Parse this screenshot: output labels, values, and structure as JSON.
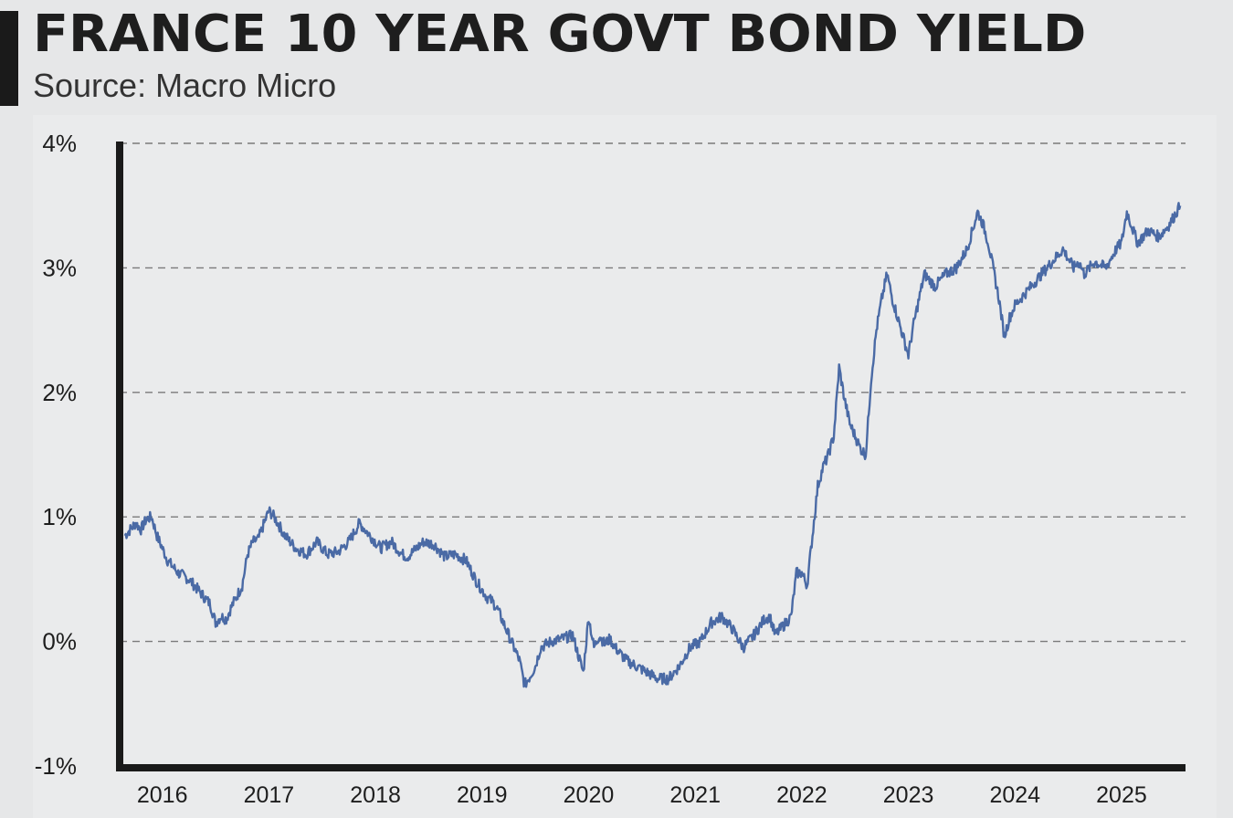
{
  "header": {
    "title": "FRANCE 10 YEAR GOVT BOND YIELD",
    "subtitle": "Source: Macro Micro"
  },
  "colors": {
    "line": "#4a6aa5",
    "axis": "#1a1a1a",
    "grid": "#7a7a7a"
  },
  "chart_data": {
    "type": "line",
    "title": "FRANCE 10 YEAR GOVT BOND YIELD",
    "subtitle": "Source: Macro Micro",
    "xlabel": "",
    "ylabel": "",
    "ylim": [
      -1,
      4
    ],
    "xlim": [
      2015.75,
      2025.75
    ],
    "grid": "horizontal dashed",
    "y_ticks": [
      {
        "value": 4,
        "label": "4%"
      },
      {
        "value": 3,
        "label": "3%"
      },
      {
        "value": 2,
        "label": "2%"
      },
      {
        "value": 1,
        "label": "1%"
      },
      {
        "value": 0,
        "label": "0%"
      },
      {
        "value": -1,
        "label": "-1%"
      }
    ],
    "x_ticks": [
      {
        "value": 2016.15,
        "label": "2016"
      },
      {
        "value": 2017.15,
        "label": "2017"
      },
      {
        "value": 2018.15,
        "label": "2018"
      },
      {
        "value": 2019.15,
        "label": "2019"
      },
      {
        "value": 2020.15,
        "label": "2020"
      },
      {
        "value": 2021.15,
        "label": "2021"
      },
      {
        "value": 2022.15,
        "label": "2022"
      },
      {
        "value": 2023.15,
        "label": "2023"
      },
      {
        "value": 2024.15,
        "label": "2024"
      },
      {
        "value": 2025.15,
        "label": "2025"
      }
    ],
    "series": [
      {
        "name": "France 10Y yield (%)",
        "x": [
          2015.8,
          2015.9,
          2015.95,
          2016.0,
          2016.05,
          2016.1,
          2016.2,
          2016.3,
          2016.4,
          2016.5,
          2016.6,
          2016.65,
          2016.7,
          2016.75,
          2016.8,
          2016.9,
          2016.95,
          2017.0,
          2017.05,
          2017.15,
          2017.2,
          2017.3,
          2017.4,
          2017.5,
          2017.6,
          2017.7,
          2017.8,
          2017.9,
          2018.0,
          2018.1,
          2018.2,
          2018.3,
          2018.4,
          2018.45,
          2018.5,
          2018.6,
          2018.7,
          2018.8,
          2018.9,
          2019.0,
          2019.1,
          2019.2,
          2019.25,
          2019.3,
          2019.4,
          2019.5,
          2019.55,
          2019.6,
          2019.65,
          2019.7,
          2019.8,
          2019.9,
          2020.0,
          2020.05,
          2020.1,
          2020.15,
          2020.2,
          2020.25,
          2020.3,
          2020.35,
          2020.4,
          2020.5,
          2020.6,
          2020.7,
          2020.8,
          2020.9,
          2021.0,
          2021.1,
          2021.2,
          2021.3,
          2021.4,
          2021.5,
          2021.6,
          2021.7,
          2021.8,
          2021.85,
          2021.9,
          2022.0,
          2022.05,
          2022.1,
          2022.15,
          2022.2,
          2022.25,
          2022.3,
          2022.35,
          2022.4,
          2022.45,
          2022.5,
          2022.55,
          2022.6,
          2022.65,
          2022.7,
          2022.75,
          2022.8,
          2022.85,
          2022.9,
          2022.95,
          2023.0,
          2023.05,
          2023.1,
          2023.15,
          2023.2,
          2023.25,
          2023.3,
          2023.4,
          2023.5,
          2023.6,
          2023.7,
          2023.75,
          2023.8,
          2023.85,
          2023.9,
          2024.0,
          2024.05,
          2024.1,
          2024.15,
          2024.2,
          2024.3,
          2024.4,
          2024.5,
          2024.6,
          2024.7,
          2024.75,
          2024.8,
          2024.9,
          2025.0,
          2025.1,
          2025.15,
          2025.2,
          2025.3,
          2025.4,
          2025.5,
          2025.6,
          2025.7
        ],
        "y": [
          0.85,
          0.95,
          0.9,
          0.98,
          1.0,
          0.85,
          0.65,
          0.55,
          0.5,
          0.4,
          0.3,
          0.15,
          0.2,
          0.18,
          0.28,
          0.45,
          0.7,
          0.8,
          0.82,
          1.05,
          1.0,
          0.85,
          0.75,
          0.7,
          0.8,
          0.7,
          0.72,
          0.8,
          0.95,
          0.85,
          0.75,
          0.8,
          0.7,
          0.68,
          0.72,
          0.8,
          0.78,
          0.68,
          0.7,
          0.65,
          0.48,
          0.35,
          0.32,
          0.25,
          0.05,
          -0.15,
          -0.35,
          -0.28,
          -0.2,
          -0.05,
          0.0,
          0.02,
          0.05,
          -0.1,
          -0.25,
          0.2,
          -0.05,
          0.05,
          -0.02,
          0.02,
          -0.05,
          -0.15,
          -0.2,
          -0.25,
          -0.3,
          -0.3,
          -0.2,
          -0.05,
          0.0,
          0.15,
          0.2,
          0.1,
          -0.05,
          0.05,
          0.18,
          0.2,
          0.05,
          0.15,
          0.2,
          0.55,
          0.55,
          0.45,
          0.85,
          1.25,
          1.4,
          1.5,
          1.65,
          2.2,
          1.95,
          1.75,
          1.65,
          1.55,
          1.5,
          2.1,
          2.5,
          2.75,
          2.95,
          2.75,
          2.6,
          2.45,
          2.3,
          2.55,
          2.75,
          2.95,
          2.85,
          2.95,
          3.0,
          3.15,
          3.3,
          3.45,
          3.35,
          3.2,
          2.75,
          2.45,
          2.6,
          2.7,
          2.75,
          2.85,
          2.95,
          3.05,
          3.15,
          3.0,
          3.05,
          2.95,
          3.05,
          3.0,
          3.15,
          3.2,
          3.45,
          3.2,
          3.3,
          3.25,
          3.35,
          3.5
        ]
      }
    ]
  }
}
